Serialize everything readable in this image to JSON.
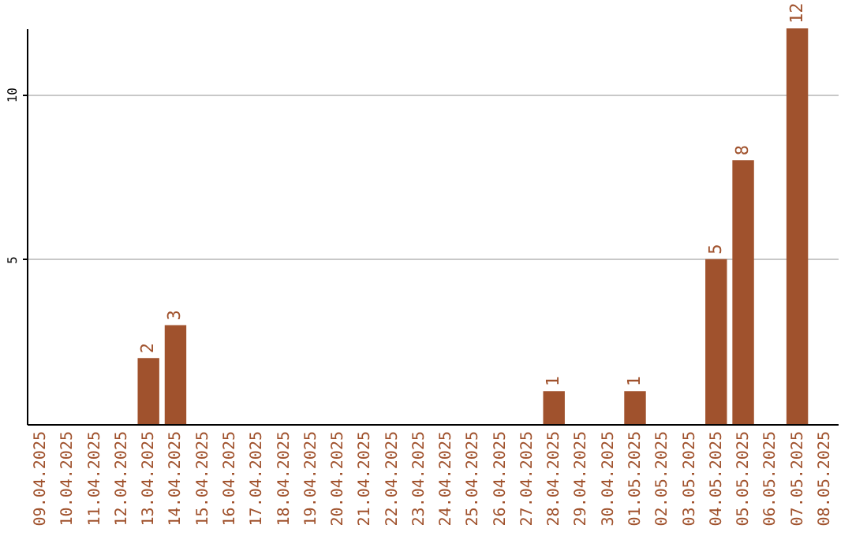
{
  "chart_data": {
    "type": "bar",
    "categories": [
      "09.04.2025",
      "10.04.2025",
      "11.04.2025",
      "12.04.2025",
      "13.04.2025",
      "14.04.2025",
      "15.04.2025",
      "16.04.2025",
      "17.04.2025",
      "18.04.2025",
      "19.04.2025",
      "20.04.2025",
      "21.04.2025",
      "22.04.2025",
      "23.04.2025",
      "24.04.2025",
      "25.04.2025",
      "26.04.2025",
      "27.04.2025",
      "28.04.2025",
      "29.04.2025",
      "30.04.2025",
      "01.05.2025",
      "02.05.2025",
      "03.05.2025",
      "04.05.2025",
      "05.05.2025",
      "06.05.2025",
      "07.05.2025",
      "08.05.2025"
    ],
    "values": [
      0,
      0,
      0,
      0,
      2,
      3,
      0,
      0,
      0,
      0,
      0,
      0,
      0,
      0,
      0,
      0,
      0,
      0,
      0,
      1,
      0,
      0,
      1,
      0,
      0,
      5,
      8,
      0,
      12,
      0
    ],
    "value_labels": [
      null,
      null,
      null,
      null,
      "2",
      "3",
      null,
      null,
      null,
      null,
      null,
      null,
      null,
      null,
      null,
      null,
      null,
      null,
      null,
      "1",
      null,
      null,
      "1",
      null,
      null,
      "5",
      "8",
      null,
      "12",
      null
    ],
    "color": "#a0522d",
    "ylim": [
      0,
      12
    ],
    "yticks": [
      5,
      10
    ],
    "grid": "y"
  }
}
